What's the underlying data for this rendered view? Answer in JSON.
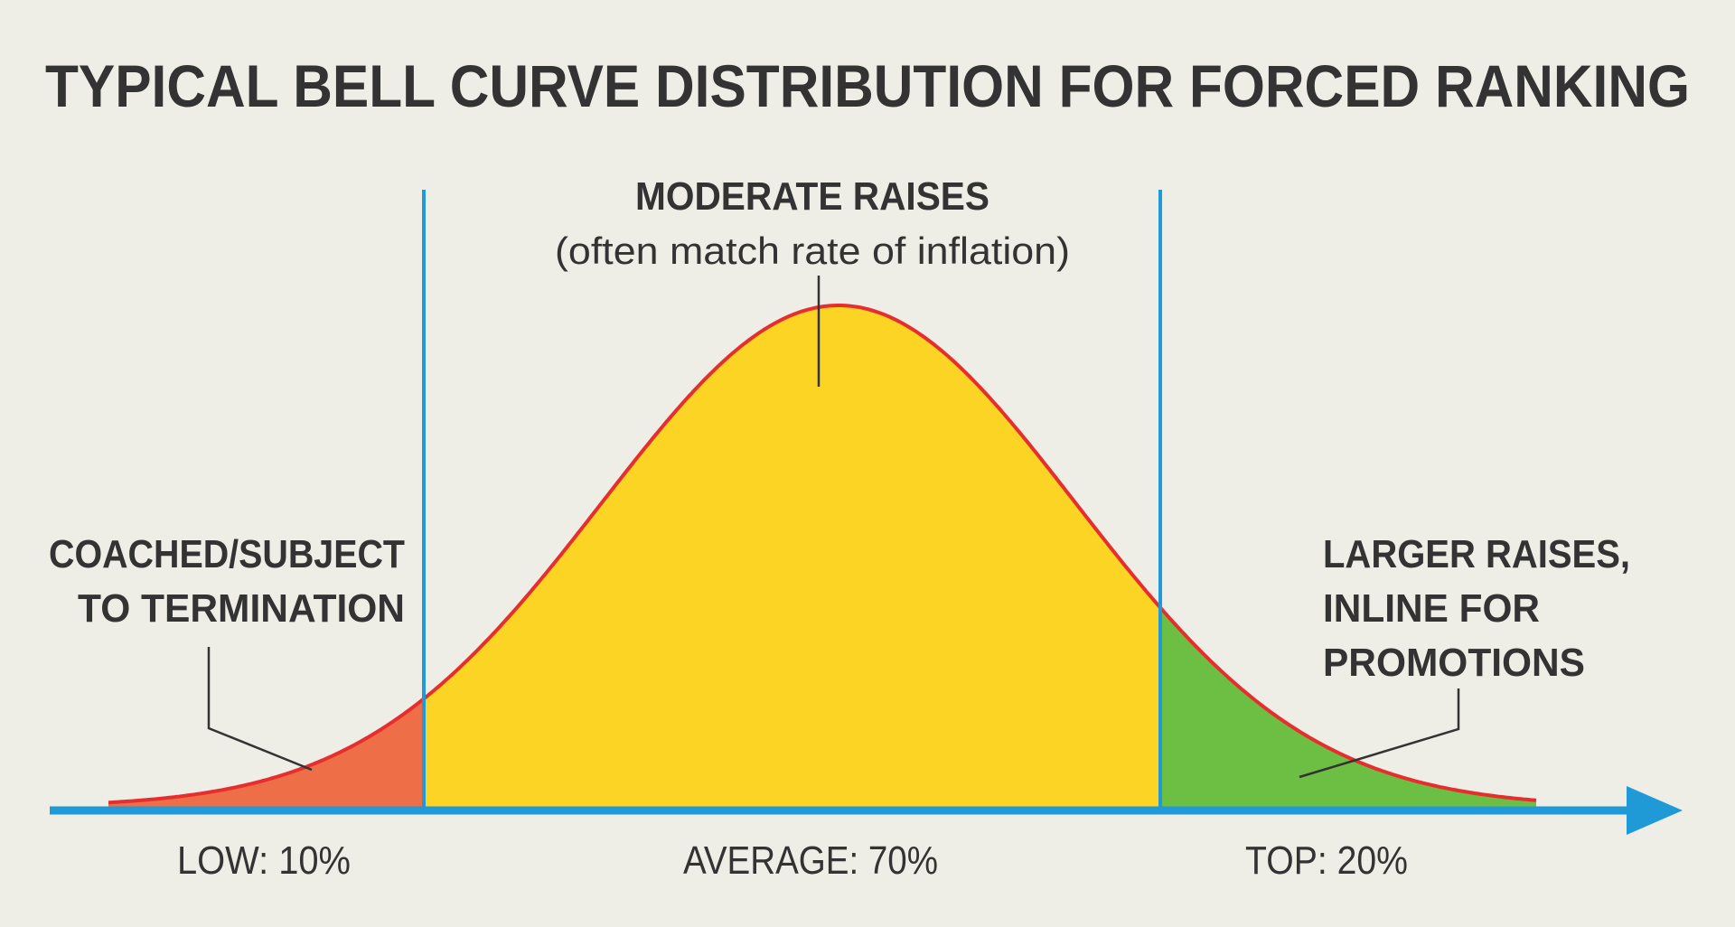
{
  "title": "TYPICAL BELL CURVE DISTRIBUTION FOR FORCED RANKING",
  "colors": {
    "background": "#eeeee6",
    "text": "#333333",
    "axis": "#1f9ad6",
    "divider": "#1f9ad6",
    "curve_outline": "#e62e2e",
    "low_fill": "#ee6e47",
    "average_fill": "#fcd423",
    "top_fill": "#6dbf44",
    "leader_line": "#333333"
  },
  "chart_data": {
    "type": "area",
    "title": "TYPICAL BELL CURVE DISTRIBUTION FOR FORCED RANKING",
    "xlabel": "",
    "ylabel": "",
    "grid": false,
    "segments": [
      {
        "name": "LOW",
        "label": "LOW: 10%",
        "share": 10,
        "color": "#ee6e47"
      },
      {
        "name": "AVERAGE",
        "label": "AVERAGE: 70%",
        "share": 70,
        "color": "#fcd423"
      },
      {
        "name": "TOP",
        "label": "TOP: 20%",
        "share": 20,
        "color": "#6dbf44"
      }
    ],
    "annotations": [
      {
        "segment": "LOW",
        "lines": [
          "COACHED/SUBJECT",
          "TO TERMINATION"
        ]
      },
      {
        "segment": "AVERAGE",
        "lines": [
          "MODERATE RAISES"
        ],
        "subtext": "(often match rate of inflation)"
      },
      {
        "segment": "TOP",
        "lines": [
          "LARGER RAISES,",
          "INLINE FOR",
          "PROMOTIONS"
        ]
      }
    ]
  }
}
